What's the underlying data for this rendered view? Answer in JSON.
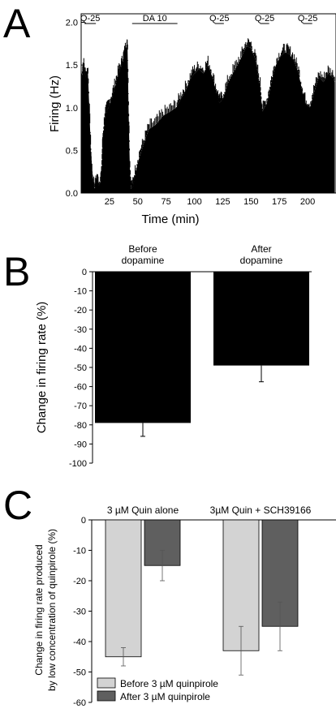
{
  "panels": {
    "a": {
      "letter": "A"
    },
    "b": {
      "letter": "B"
    },
    "c": {
      "letter": "C"
    }
  },
  "chart_data": [
    {
      "panel": "A",
      "type": "bar",
      "xlabel": "Time (min)",
      "ylabel": "Firing (Hz)",
      "xlim": [
        0,
        225
      ],
      "ylim": [
        0,
        2.1
      ],
      "xticks": [
        "25",
        "50",
        "75",
        "100",
        "125",
        "150",
        "175",
        "200"
      ],
      "yticks": [
        "0.0",
        "0.5",
        "1.0",
        "1.5",
        "2.0"
      ],
      "drug_bars": [
        {
          "label": "Q-25",
          "x": [
            3,
            13
          ]
        },
        {
          "label": "DA 10",
          "x": [
            45,
            85
          ]
        },
        {
          "label": "Q-25",
          "x": [
            118,
            126
          ]
        },
        {
          "label": "Q-25",
          "x": [
            158,
            166
          ]
        },
        {
          "label": "Q-25",
          "x": [
            196,
            204
          ]
        }
      ],
      "trace": [
        [
          0,
          1.3
        ],
        [
          2,
          1.5
        ],
        [
          4,
          1.35
        ],
        [
          6,
          1.4
        ],
        [
          8,
          0.7
        ],
        [
          9,
          0.3
        ],
        [
          10,
          0.15
        ],
        [
          12,
          0.05
        ],
        [
          14,
          0.15
        ],
        [
          16,
          0.08
        ],
        [
          18,
          0.2
        ],
        [
          19,
          0.6
        ],
        [
          21,
          0.9
        ],
        [
          24,
          1.0
        ],
        [
          27,
          1.1
        ],
        [
          30,
          1.25
        ],
        [
          33,
          1.4
        ],
        [
          36,
          1.5
        ],
        [
          38,
          1.6
        ],
        [
          40,
          1.72
        ],
        [
          41,
          1.68
        ],
        [
          42,
          0.9
        ],
        [
          43,
          0.3
        ],
        [
          44,
          0.05
        ],
        [
          46,
          0.08
        ],
        [
          48,
          0.25
        ],
        [
          52,
          0.45
        ],
        [
          56,
          0.6
        ],
        [
          60,
          0.75
        ],
        [
          66,
          0.8
        ],
        [
          72,
          0.9
        ],
        [
          78,
          0.95
        ],
        [
          84,
          1.0
        ],
        [
          88,
          1.1
        ],
        [
          92,
          1.2
        ],
        [
          97,
          1.35
        ],
        [
          100,
          1.4
        ],
        [
          104,
          1.45
        ],
        [
          108,
          1.4
        ],
        [
          112,
          1.5
        ],
        [
          116,
          1.35
        ],
        [
          120,
          1.15
        ],
        [
          122,
          1.05
        ],
        [
          125,
          1.1
        ],
        [
          130,
          1.3
        ],
        [
          136,
          1.45
        ],
        [
          142,
          1.6
        ],
        [
          146,
          1.72
        ],
        [
          150,
          1.7
        ],
        [
          154,
          1.55
        ],
        [
          158,
          1.25
        ],
        [
          160,
          0.95
        ],
        [
          164,
          1.05
        ],
        [
          168,
          1.3
        ],
        [
          172,
          1.5
        ],
        [
          176,
          1.6
        ],
        [
          180,
          1.65
        ],
        [
          184,
          1.62
        ],
        [
          188,
          1.55
        ],
        [
          192,
          1.4
        ],
        [
          196,
          1.15
        ],
        [
          198,
          1.05
        ],
        [
          202,
          1.0
        ],
        [
          206,
          1.2
        ],
        [
          210,
          1.35
        ],
        [
          214,
          1.3
        ],
        [
          218,
          1.4
        ],
        [
          222,
          1.35
        ],
        [
          224,
          1.3
        ]
      ]
    },
    {
      "panel": "B",
      "type": "bar",
      "ylabel": "Change in firing rate (%)",
      "ylim": [
        -100,
        0
      ],
      "yticks": [
        "0",
        "-10",
        "-20",
        "-30",
        "-40",
        "-50",
        "-60",
        "-70",
        "-80",
        "-90",
        "-100"
      ],
      "categories": [
        "Before dopamine",
        "After dopamine"
      ],
      "category_lines": [
        [
          "Before",
          "dopamine"
        ],
        [
          "After",
          "dopamine"
        ]
      ],
      "values": [
        -79,
        -49
      ],
      "errors": [
        7,
        8.5
      ],
      "color": "#000000"
    },
    {
      "panel": "C",
      "type": "bar",
      "ylabel_lines": [
        "Change in firing rate produced",
        "by low concentration of quinpirole (%)"
      ],
      "ylim": [
        -60,
        0
      ],
      "yticks": [
        "0",
        "-10",
        "-20",
        "-30",
        "-40",
        "-50",
        "-60"
      ],
      "categories": [
        "3 µM Quin alone",
        "3µM Quin + SCH39166"
      ],
      "series": [
        {
          "name": "Before 3 µM quinpirole",
          "values": [
            -45,
            -43
          ],
          "errors": [
            3,
            8
          ],
          "color": "#d3d3d3"
        },
        {
          "name": "After 3 µM quinpirole",
          "values": [
            -15,
            -35
          ],
          "errors": [
            5,
            8
          ],
          "color": "#5f5f5f"
        }
      ]
    }
  ]
}
